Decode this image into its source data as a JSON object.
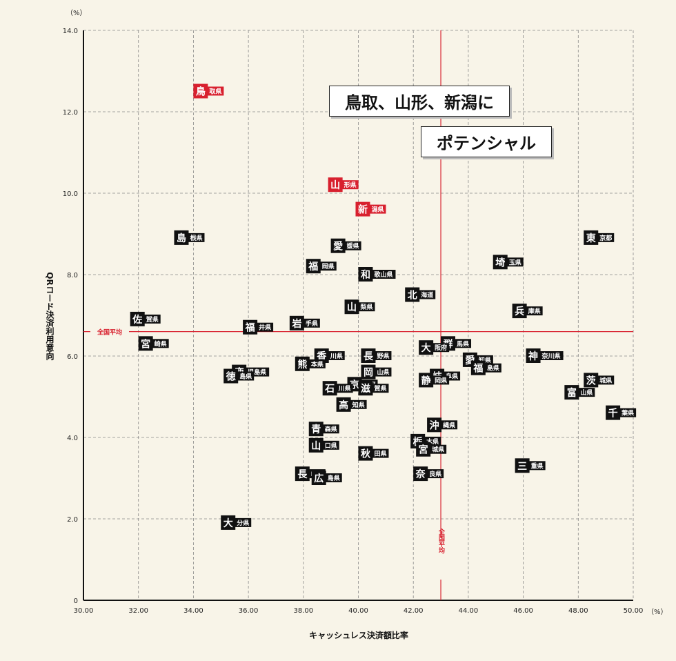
{
  "chart_data": {
    "type": "scatter",
    "xlabel": "キャッシュレス決済額比率",
    "ylabel": "QRコード決済利用意向",
    "x_unit": "（%）",
    "y_unit": "（%）",
    "xlim": [
      30,
      50
    ],
    "ylim": [
      0,
      14
    ],
    "xticks": [
      "30.00",
      "32.00",
      "34.00",
      "36.00",
      "38.00",
      "40.00",
      "42.00",
      "44.00",
      "46.00",
      "48.00",
      "50.00"
    ],
    "yticks": [
      "0",
      "2.0",
      "4.0",
      "6.0",
      "8.0",
      "10.0",
      "12.0",
      "14.0"
    ],
    "grid": true,
    "national_average": {
      "x": 43.0,
      "y": 6.6,
      "label_h": "全国平均",
      "label_v": "全国平均"
    },
    "callouts": [
      "鳥取、山形、新潟に",
      "ポテンシャル"
    ],
    "highlight_color": "#d8202e",
    "marker_color": "#111111",
    "points": [
      {
        "big": "鳥",
        "small": "取県",
        "x": 34.2,
        "y": 12.5,
        "highlight": true
      },
      {
        "big": "山",
        "small": "形県",
        "x": 39.1,
        "y": 10.2,
        "highlight": true
      },
      {
        "big": "新",
        "small": "潟県",
        "x": 40.1,
        "y": 9.6,
        "highlight": true
      },
      {
        "big": "島",
        "small": "根県",
        "x": 33.5,
        "y": 8.9
      },
      {
        "big": "東",
        "small": "京都",
        "x": 48.4,
        "y": 8.9
      },
      {
        "big": "愛",
        "small": "媛県",
        "x": 39.2,
        "y": 8.7
      },
      {
        "big": "福",
        "small": "岡県",
        "x": 38.3,
        "y": 8.2
      },
      {
        "big": "埼",
        "small": "玉県",
        "x": 45.1,
        "y": 8.3
      },
      {
        "big": "和",
        "small": "歌山県",
        "x": 40.2,
        "y": 8.0
      },
      {
        "big": "北",
        "small": "海道",
        "x": 41.9,
        "y": 7.5
      },
      {
        "big": "山",
        "small": "梨県",
        "x": 39.7,
        "y": 7.2
      },
      {
        "big": "兵",
        "small": "庫県",
        "x": 45.8,
        "y": 7.1
      },
      {
        "big": "佐",
        "small": "賀県",
        "x": 31.9,
        "y": 6.9
      },
      {
        "big": "岩",
        "small": "手県",
        "x": 37.7,
        "y": 6.8
      },
      {
        "big": "福",
        "small": "井県",
        "x": 36.0,
        "y": 6.7
      },
      {
        "big": "群",
        "small": "馬県",
        "x": 43.2,
        "y": 6.3
      },
      {
        "big": "宮",
        "small": "崎県",
        "x": 32.2,
        "y": 6.3
      },
      {
        "big": "香",
        "small": "川県",
        "x": 38.6,
        "y": 6.0
      },
      {
        "big": "長",
        "small": "野県",
        "x": 40.3,
        "y": 6.0
      },
      {
        "big": "大",
        "small": "阪府",
        "x": 42.4,
        "y": 6.2
      },
      {
        "big": "愛",
        "small": "知県",
        "x": 44.0,
        "y": 5.9
      },
      {
        "big": "神",
        "small": "奈川県",
        "x": 46.3,
        "y": 6.0
      },
      {
        "big": "熊",
        "small": "本県",
        "x": 37.9,
        "y": 5.8
      },
      {
        "big": "岐",
        "small": "阜県",
        "x": 42.8,
        "y": 5.5
      },
      {
        "big": "京",
        "small": "都府",
        "x": 39.8,
        "y": 5.3
      },
      {
        "big": "岡",
        "small": "山県",
        "x": 40.3,
        "y": 5.6
      },
      {
        "big": "鹿",
        "small": "児島県",
        "x": 35.6,
        "y": 5.6
      },
      {
        "big": "福",
        "small": "島県",
        "x": 44.3,
        "y": 5.7
      },
      {
        "big": "徳",
        "small": "島県",
        "x": 35.3,
        "y": 5.5
      },
      {
        "big": "茨",
        "small": "城県",
        "x": 48.4,
        "y": 5.4
      },
      {
        "big": "静",
        "small": "岡県",
        "x": 42.4,
        "y": 5.4
      },
      {
        "big": "石",
        "small": "川県",
        "x": 38.9,
        "y": 5.2
      },
      {
        "big": "富",
        "small": "山県",
        "x": 47.7,
        "y": 5.1
      },
      {
        "big": "滋",
        "small": "賀県",
        "x": 40.2,
        "y": 5.2
      },
      {
        "big": "高",
        "small": "知県",
        "x": 39.4,
        "y": 4.8
      },
      {
        "big": "千",
        "small": "葉県",
        "x": 49.2,
        "y": 4.6
      },
      {
        "big": "沖",
        "small": "縄県",
        "x": 42.7,
        "y": 4.3
      },
      {
        "big": "青",
        "small": "森県",
        "x": 38.4,
        "y": 4.2
      },
      {
        "big": "栃",
        "small": "木県",
        "x": 42.1,
        "y": 3.9
      },
      {
        "big": "山",
        "small": "口県",
        "x": 38.4,
        "y": 3.8
      },
      {
        "big": "宮",
        "small": "城県",
        "x": 42.3,
        "y": 3.7
      },
      {
        "big": "秋",
        "small": "田県",
        "x": 40.2,
        "y": 3.6
      },
      {
        "big": "三",
        "small": "重県",
        "x": 45.9,
        "y": 3.3
      },
      {
        "big": "長",
        "small": "崎県",
        "x": 37.9,
        "y": 3.1
      },
      {
        "big": "広",
        "small": "島県",
        "x": 38.5,
        "y": 3.0
      },
      {
        "big": "奈",
        "small": "良県",
        "x": 42.2,
        "y": 3.1
      },
      {
        "big": "大",
        "small": "分県",
        "x": 35.2,
        "y": 1.9
      }
    ]
  }
}
